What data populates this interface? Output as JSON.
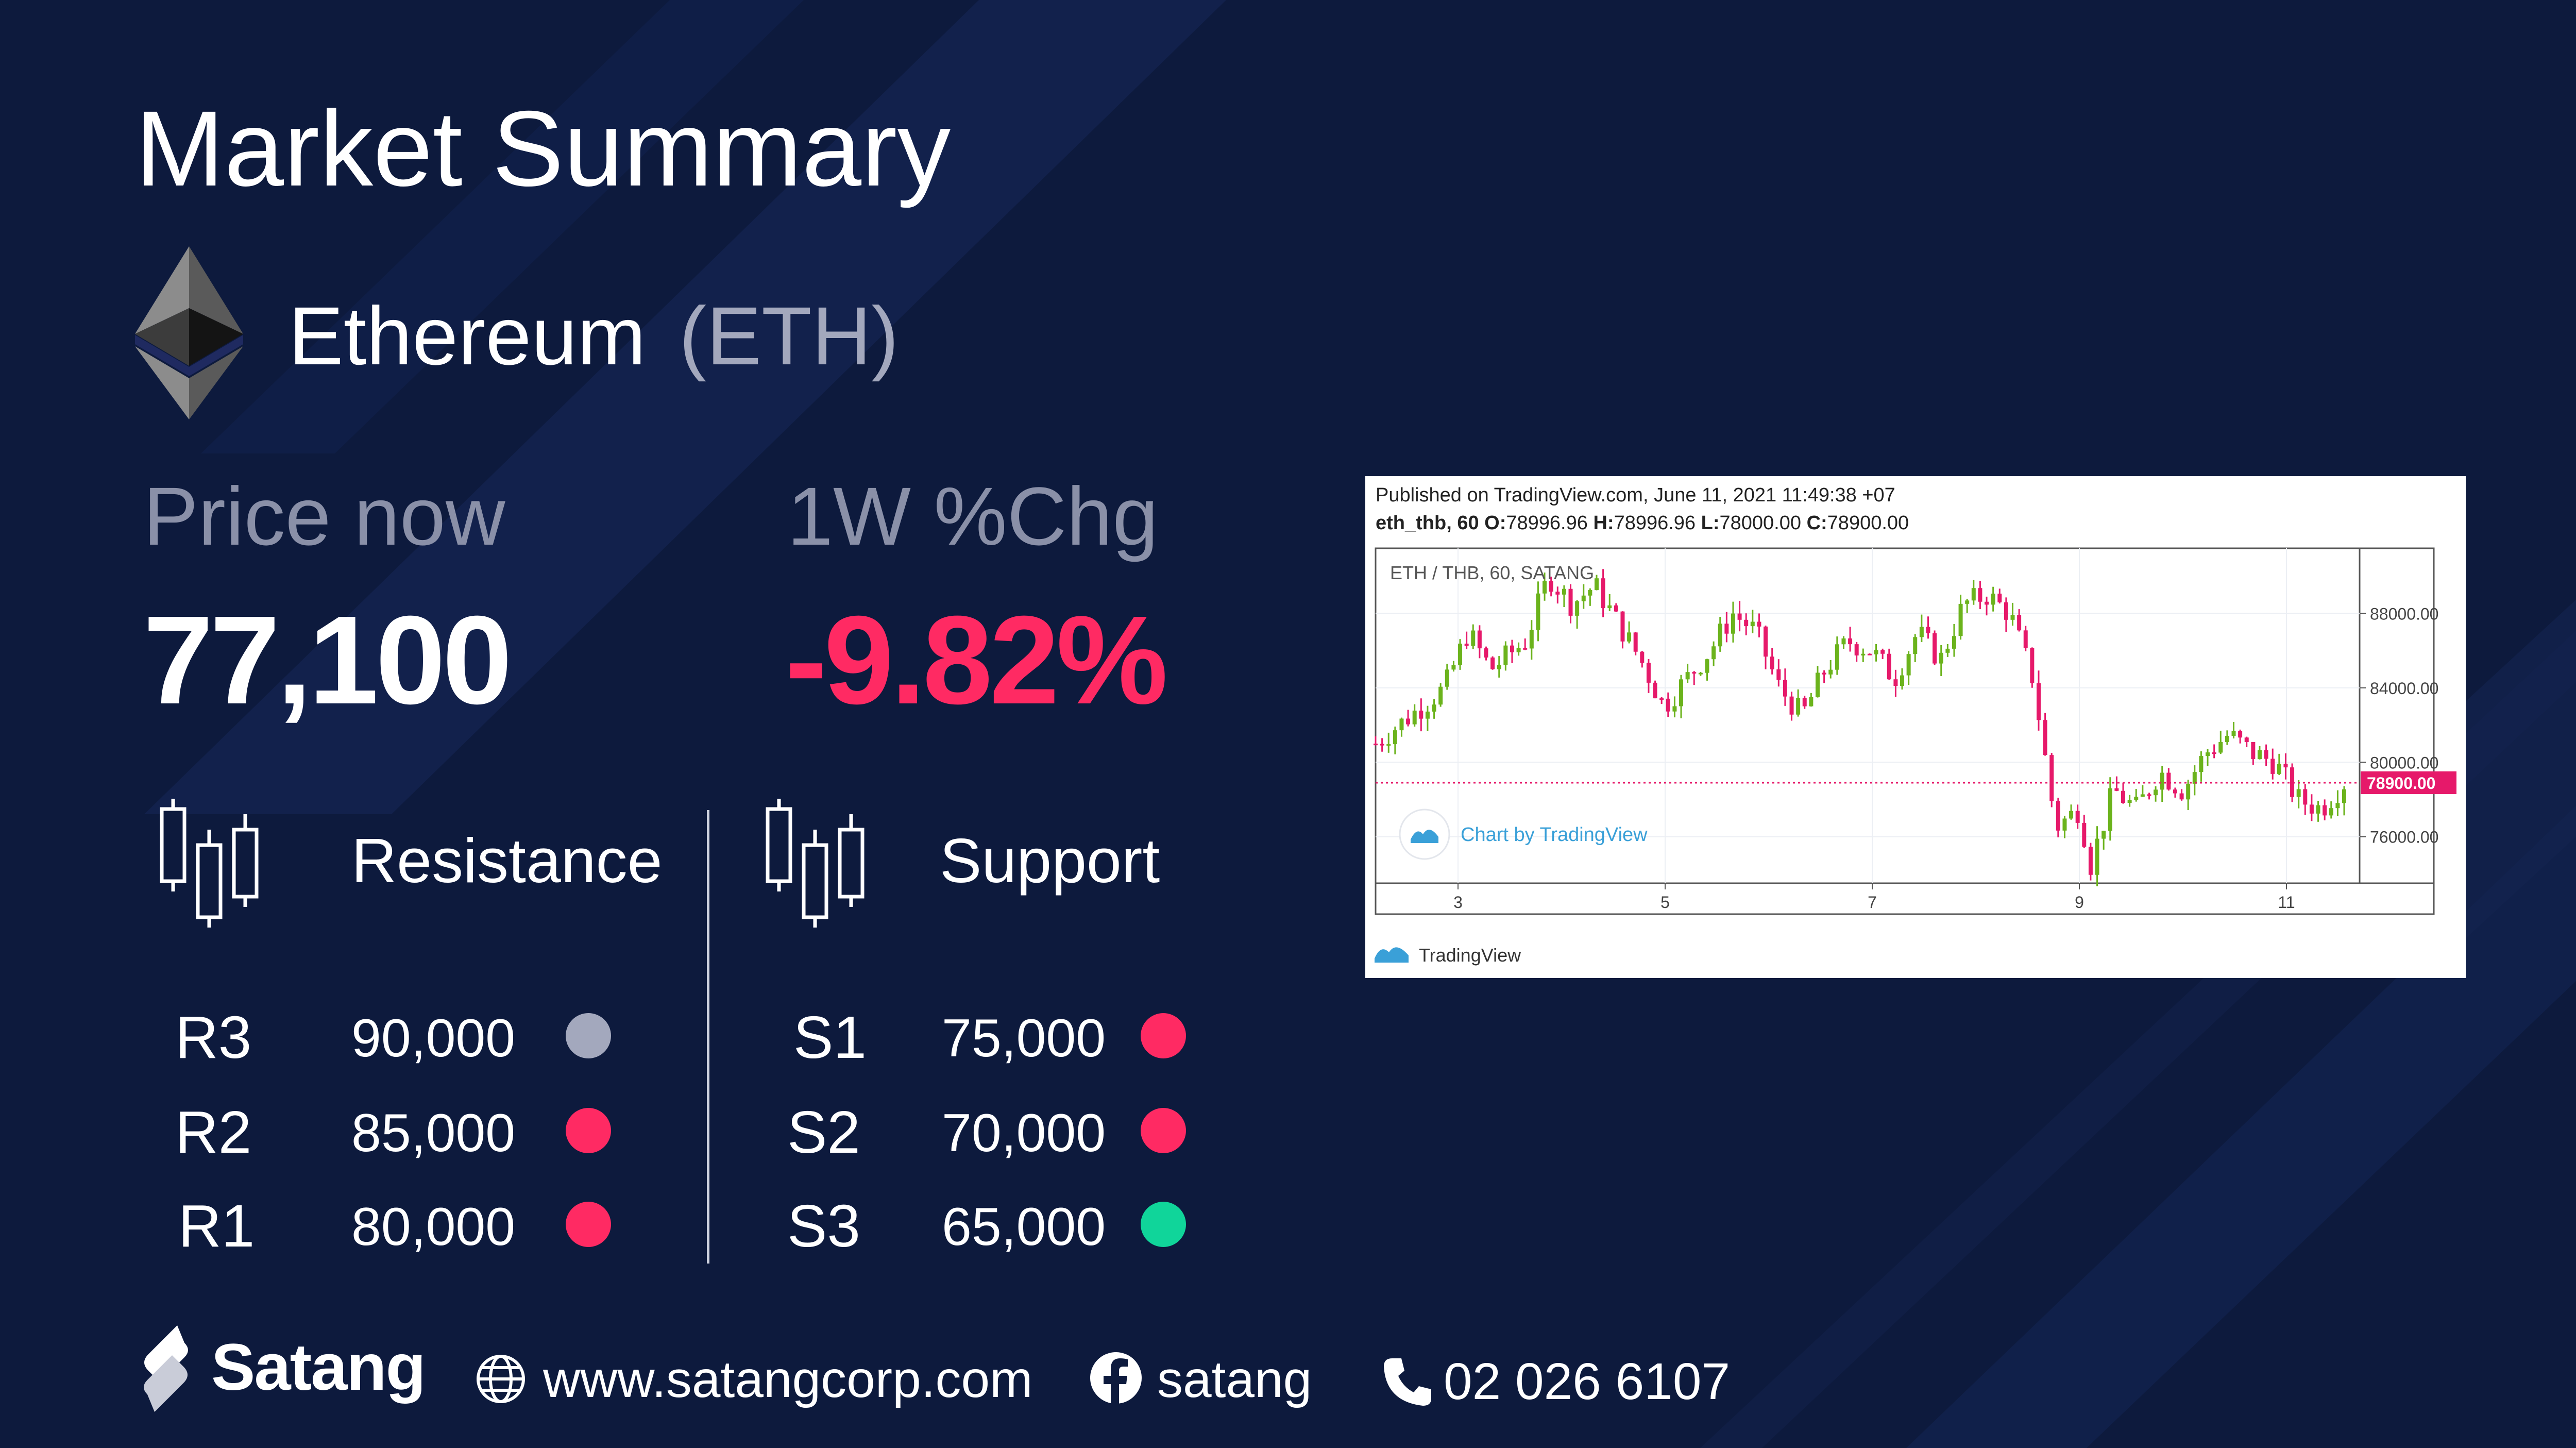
{
  "title": "Market Summary",
  "coin": {
    "name": "Ethereum",
    "symbol": "(ETH)",
    "icon": "ethereum-icon"
  },
  "price": {
    "label": "Price now",
    "value": "77,100"
  },
  "change": {
    "label": "1W %Chg",
    "value": "-9.82%",
    "color": "#ff2a63"
  },
  "resistance": {
    "title": "Resistance",
    "icon": "candlestick-icon",
    "levels": [
      {
        "name": "R3",
        "value": "90,000",
        "dot_color": "#a3a8bd"
      },
      {
        "name": "R2",
        "value": "85,000",
        "dot_color": "#ff2a63"
      },
      {
        "name": "R1",
        "value": "80,000",
        "dot_color": "#ff2a63"
      }
    ]
  },
  "support": {
    "title": "Support",
    "icon": "candlestick-icon",
    "levels": [
      {
        "name": "S1",
        "value": "75,000",
        "dot_color": "#ff2a63"
      },
      {
        "name": "S2",
        "value": "70,000",
        "dot_color": "#ff2a63"
      },
      {
        "name": "S3",
        "value": "65,000",
        "dot_color": "#10d59a"
      }
    ]
  },
  "chart": {
    "published": "Published on TradingView.com, June 11, 2021 11:49:38 +07",
    "ohlc": {
      "symbol": "eth_thb, 60",
      "O": "78996.96",
      "H": "78996.96",
      "L": "78000.00",
      "C": "78900.00"
    },
    "pair_label": "ETH / THB, 60, SATANG",
    "watermark": "Chart by TradingView",
    "footer": "TradingView",
    "last_price_label": "78900.00",
    "colors": {
      "up": "#6bb31c",
      "down": "#e6196a",
      "last_price": "#e6196a"
    }
  },
  "chart_data": {
    "type": "candlestick",
    "title": "ETH / THB, 60, SATANG",
    "xlabel": "",
    "ylabel": "",
    "x_ticks": [
      "3",
      "5",
      "7",
      "9",
      "11"
    ],
    "y_ticks": [
      "88000.00",
      "84000.00",
      "80000.00",
      "76000.00"
    ],
    "ylim": [
      73500,
      91500
    ],
    "last_price": 78900,
    "close_path": [
      [
        0,
        81000
      ],
      [
        3,
        82500
      ],
      [
        6,
        84000
      ],
      [
        8,
        87000
      ],
      [
        10,
        85000
      ],
      [
        13,
        86500
      ],
      [
        15,
        90000
      ],
      [
        17,
        88500
      ],
      [
        19,
        89500
      ],
      [
        21,
        87500
      ],
      [
        23,
        85500
      ],
      [
        25,
        83000
      ],
      [
        27,
        84500
      ],
      [
        29,
        86000
      ],
      [
        31,
        88000
      ],
      [
        33,
        87000
      ],
      [
        35,
        84000
      ],
      [
        37,
        82500
      ],
      [
        39,
        85000
      ],
      [
        41,
        86500
      ],
      [
        43,
        86000
      ],
      [
        45,
        84500
      ],
      [
        47,
        87000
      ],
      [
        49,
        85500
      ],
      [
        51,
        88500
      ],
      [
        53,
        89000
      ],
      [
        55,
        88000
      ],
      [
        57,
        84500
      ],
      [
        59,
        76500
      ],
      [
        61,
        77500
      ],
      [
        62,
        74500
      ],
      [
        64,
        78500
      ],
      [
        66,
        77500
      ],
      [
        68,
        79500
      ],
      [
        70,
        78500
      ],
      [
        72,
        80500
      ],
      [
        74,
        81500
      ],
      [
        76,
        80500
      ],
      [
        78,
        80000
      ],
      [
        80,
        78000
      ],
      [
        82,
        77500
      ],
      [
        84,
        78900
      ]
    ],
    "x_range": [
      0,
      84
    ]
  },
  "footer": {
    "brand": "Satang",
    "website": "www.satangcorp.com",
    "facebook": "satang",
    "phone": "02 026 6107",
    "icons": {
      "logo": "satang-logo-icon",
      "web": "globe-icon",
      "fb": "facebook-icon",
      "phone": "phone-icon"
    }
  }
}
